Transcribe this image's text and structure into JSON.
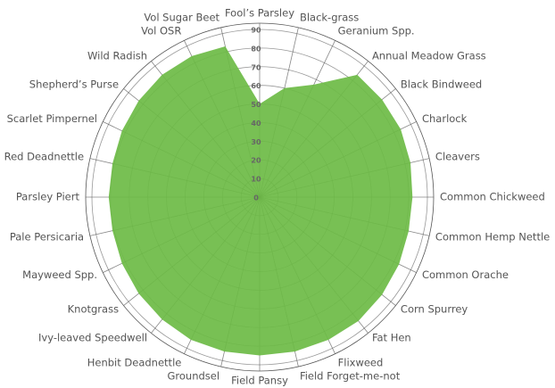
{
  "chart_data": {
    "type": "radar",
    "categories": [
      "Fool’s Parsley",
      "Black-grass",
      "Geranium Spp.",
      "Annual Meadow Grass",
      "Black Bindweed",
      "Charlock",
      "Cleavers",
      "Common Chickweed",
      "Common Hemp Nettle",
      "Common Orache",
      "Corn Spurrey",
      "Fat Hen",
      "Flixweed",
      "Field Forget-me-not",
      "Field Pansy",
      "Groundsel",
      "Henbit Deadnettle",
      "Ivy-leaved Speedwell",
      "Knotgrass",
      "Mayweed Spp.",
      "Pale Persicaria",
      "Parsley Piert",
      "Red Deadnettle",
      "Scarlet Pimpernel",
      "Shepherd’s Purse",
      "Wild Radish",
      "Vol OSR",
      "Vol Sugar Beet"
    ],
    "values": [
      50,
      60,
      67,
      84,
      84,
      84,
      83,
      82,
      82,
      83,
      84,
      85,
      85,
      85,
      85,
      85,
      85,
      84,
      83,
      82,
      81,
      81,
      81,
      82,
      83,
      84,
      84,
      83
    ],
    "color": "#6dbb45",
    "ylim": [
      0,
      90
    ],
    "yticks": [
      0,
      10,
      20,
      30,
      40,
      50,
      60,
      70,
      80,
      90
    ],
    "grid": true
  }
}
